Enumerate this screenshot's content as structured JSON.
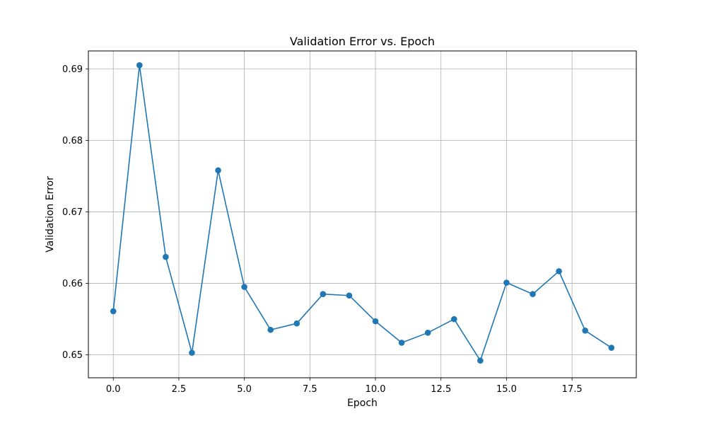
{
  "chart_data": {
    "type": "line",
    "title": "Validation Error vs. Epoch",
    "xlabel": "Epoch",
    "ylabel": "Validation Error",
    "xlim": [
      -0.95,
      19.95
    ],
    "ylim": [
      0.6468,
      0.6925
    ],
    "x_ticks": [
      0.0,
      2.5,
      5.0,
      7.5,
      10.0,
      12.5,
      15.0,
      17.5
    ],
    "x_tick_labels": [
      "0.0",
      "2.5",
      "5.0",
      "7.5",
      "10.0",
      "12.5",
      "15.0",
      "17.5"
    ],
    "y_ticks": [
      0.65,
      0.66,
      0.67,
      0.68,
      0.69
    ],
    "y_tick_labels": [
      "0.65",
      "0.66",
      "0.67",
      "0.68",
      "0.69"
    ],
    "grid": true,
    "series": [
      {
        "color": "#1f77b4",
        "marker": "circle",
        "x": [
          0,
          1,
          2,
          3,
          4,
          5,
          6,
          7,
          8,
          9,
          10,
          11,
          12,
          13,
          14,
          15,
          16,
          17,
          18,
          19
        ],
        "y": [
          0.6561,
          0.6905,
          0.6637,
          0.6503,
          0.6758,
          0.6595,
          0.6535,
          0.6544,
          0.6585,
          0.6583,
          0.6547,
          0.6517,
          0.6531,
          0.655,
          0.6492,
          0.6601,
          0.6585,
          0.6617,
          0.6534,
          0.651
        ]
      }
    ]
  },
  "colors": {
    "line": "#1f77b4",
    "grid": "#b0b0b0",
    "axes": "#000000"
  }
}
